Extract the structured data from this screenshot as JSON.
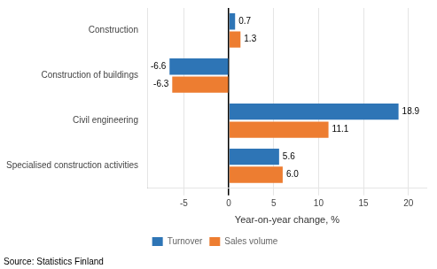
{
  "chart_data": {
    "type": "bar",
    "orientation": "horizontal",
    "categories": [
      "Construction",
      "Construction of buildings",
      "Civil engineering",
      "Specialised construction activities"
    ],
    "series": [
      {
        "name": "Turnover",
        "color": "#2E75B6",
        "values": [
          0.7,
          -6.6,
          18.9,
          5.6
        ],
        "value_labels": [
          "0.7",
          "-6.6",
          "18.9",
          "5.6"
        ]
      },
      {
        "name": "Sales volume",
        "color": "#ED7D31",
        "values": [
          1.3,
          -6.3,
          11.1,
          6.0
        ],
        "value_labels": [
          "1.3",
          "-6.3",
          "11.1",
          "6.0"
        ]
      }
    ],
    "xlabel": "Year-on-year change, %",
    "xlim": [
      -9,
      22
    ],
    "xticks": [
      -5,
      0,
      5,
      10,
      15,
      20
    ],
    "data_labels": true,
    "grid": true,
    "legend": "bottom",
    "annotations": [
      "Source: Statistics Finland"
    ]
  }
}
